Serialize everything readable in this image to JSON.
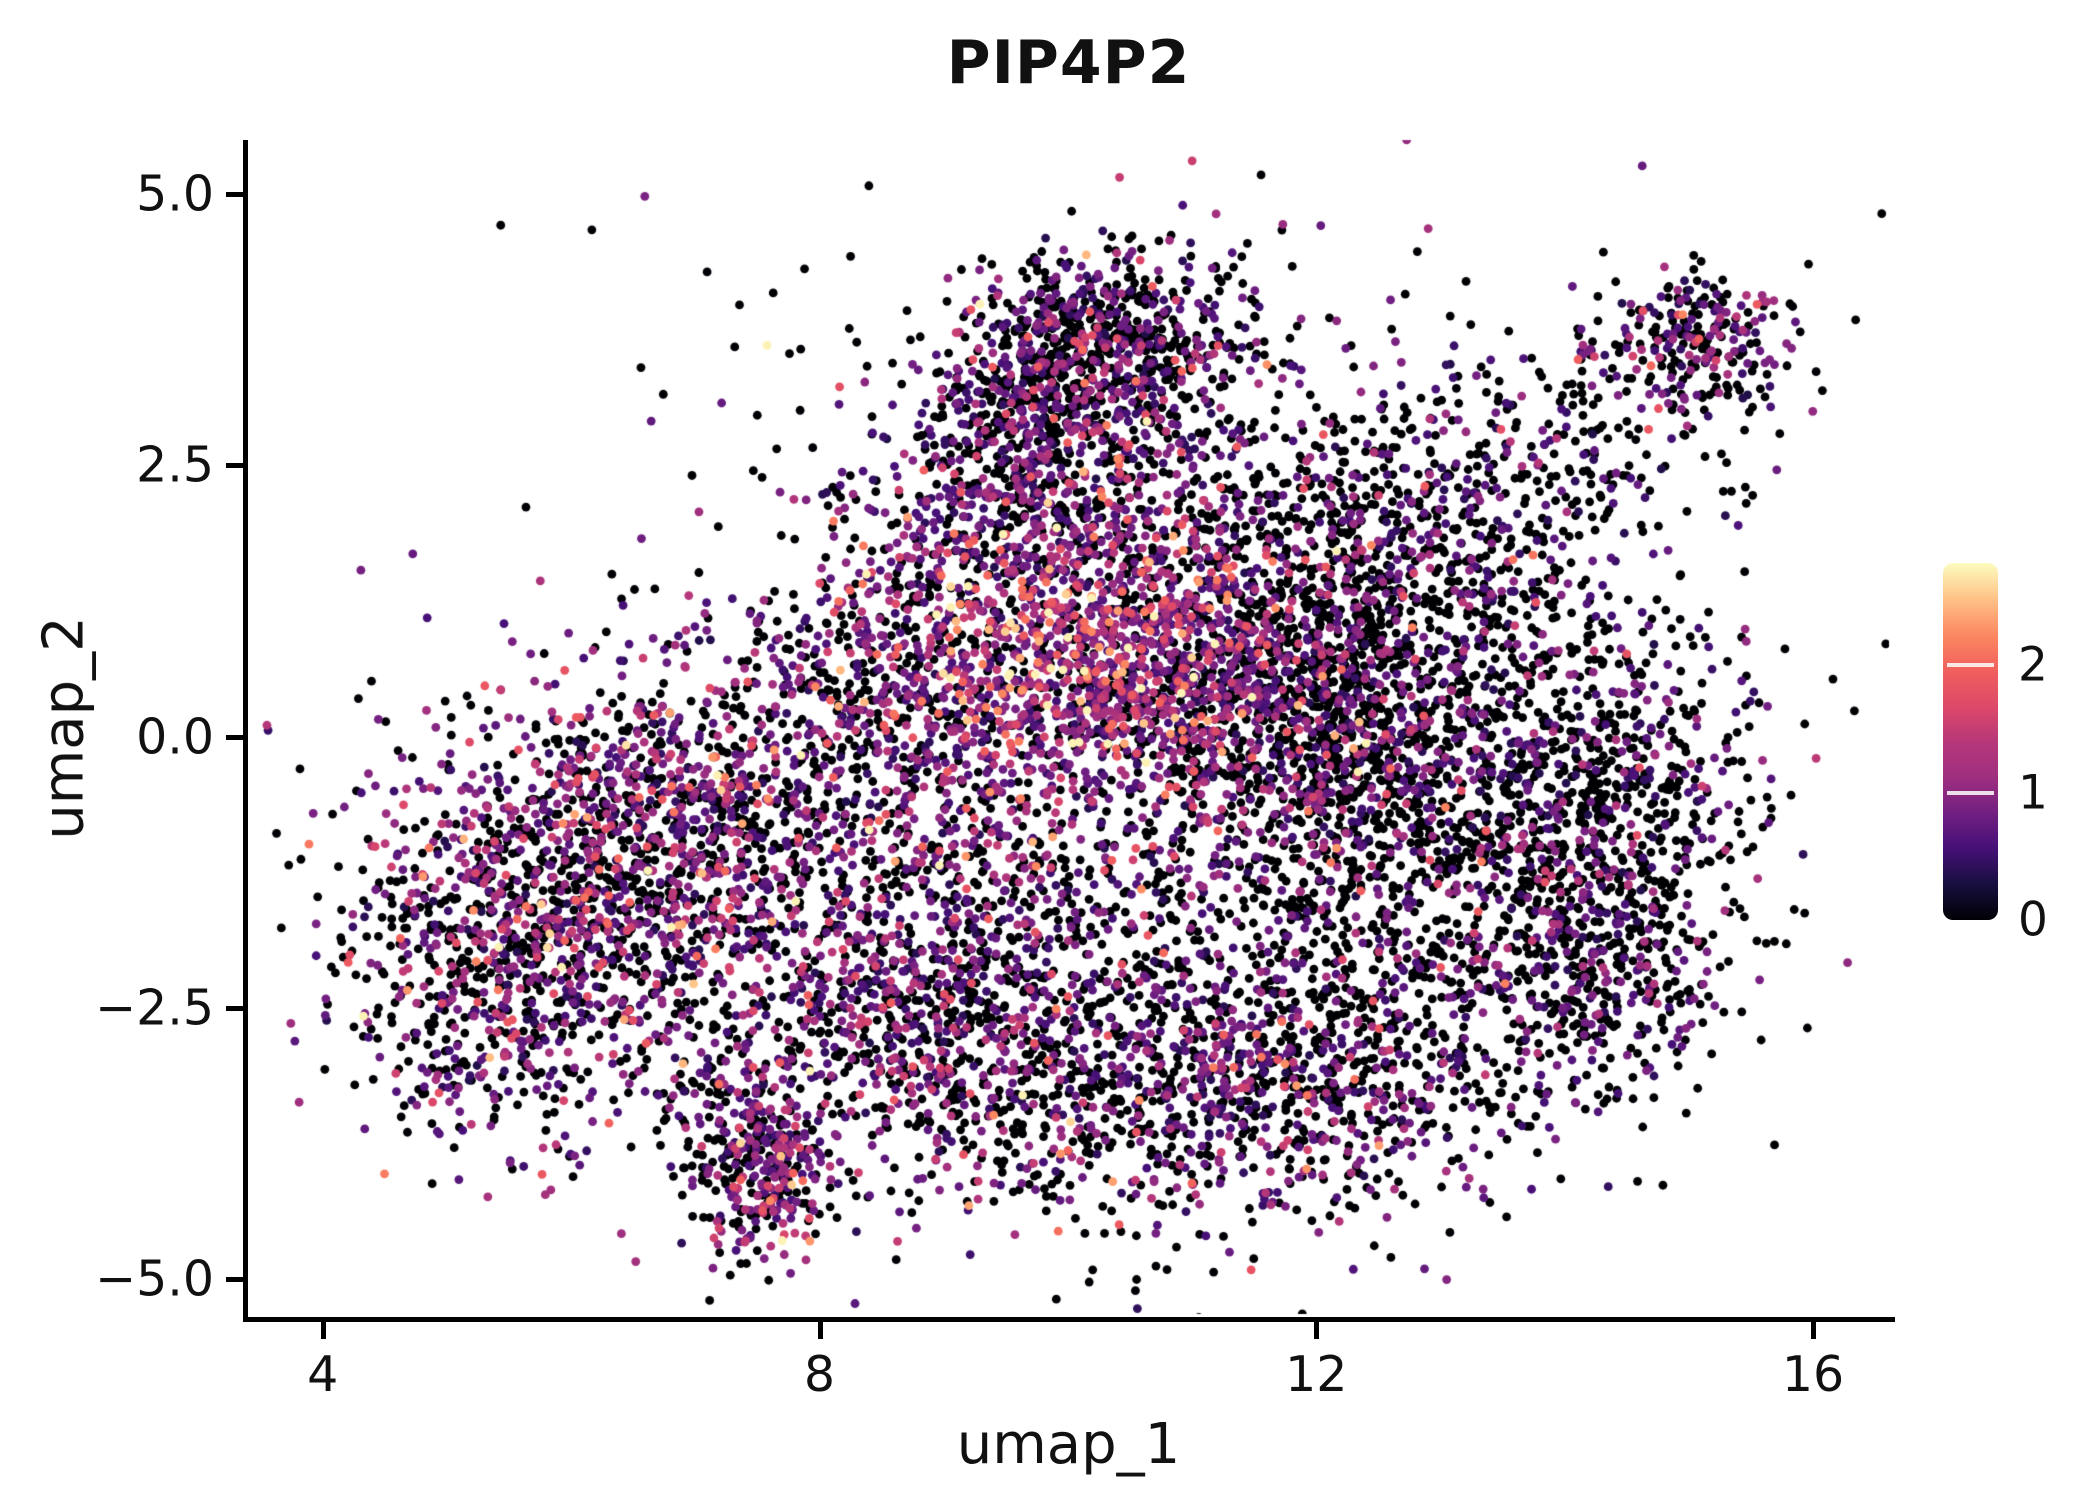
{
  "chart_data": {
    "type": "scatter",
    "title": "PIP4P2",
    "xlabel": "umap_1",
    "ylabel": "umap_2",
    "background_color": "#ffffff",
    "axis_color": "#000000",
    "grid": false,
    "xlim": [
      3.39,
      16.62
    ],
    "ylim": [
      -5.35,
      5.5
    ],
    "x_ticks": [
      {
        "value": 4,
        "label": "4"
      },
      {
        "value": 8,
        "label": "8"
      },
      {
        "value": 12,
        "label": "12"
      },
      {
        "value": 16,
        "label": "16"
      }
    ],
    "y_ticks": [
      {
        "value": 5.0,
        "label": "5.0"
      },
      {
        "value": 2.5,
        "label": "2.5"
      },
      {
        "value": 0.0,
        "label": "0.0"
      },
      {
        "value": -2.5,
        "label": "−2.5"
      },
      {
        "value": -5.0,
        "label": "−5.0"
      }
    ],
    "colorbar": {
      "position": "right",
      "domain": [
        0,
        2.8
      ],
      "ticks": [
        {
          "value": 0,
          "label": "0"
        },
        {
          "value": 1,
          "label": "1"
        },
        {
          "value": 2,
          "label": "2"
        }
      ]
    },
    "colormap": {
      "name": "magma",
      "stops": [
        {
          "t": 0.0,
          "color": "#000004"
        },
        {
          "t": 0.1,
          "color": "#180f3e"
        },
        {
          "t": 0.2,
          "color": "#451077"
        },
        {
          "t": 0.3,
          "color": "#721f81"
        },
        {
          "t": 0.4,
          "color": "#9f2f7f"
        },
        {
          "t": 0.5,
          "color": "#b73779"
        },
        {
          "t": 0.6,
          "color": "#de4968"
        },
        {
          "t": 0.7,
          "color": "#f1605d"
        },
        {
          "t": 0.8,
          "color": "#fc8961"
        },
        {
          "t": 0.9,
          "color": "#fec287"
        },
        {
          "t": 1.0,
          "color": "#fcfdbf"
        }
      ]
    },
    "point_radius": 4.4,
    "seed": 42,
    "points_encoding": "gaussian_clusters",
    "clusters": [
      {
        "x": 10.3,
        "y": 3.6,
        "sx": 0.55,
        "sy": 0.45,
        "n": 650,
        "p0": 0.55,
        "m": 0.8
      },
      {
        "x": 9.6,
        "y": 3.0,
        "sx": 0.5,
        "sy": 0.5,
        "n": 300,
        "p0": 0.5,
        "m": 0.9
      },
      {
        "x": 9.9,
        "y": 2.2,
        "sx": 0.8,
        "sy": 0.5,
        "n": 450,
        "p0": 0.5,
        "m": 0.9
      },
      {
        "x": 15.05,
        "y": 3.65,
        "sx": 0.38,
        "sy": 0.33,
        "n": 230,
        "p0": 0.5,
        "m": 1.0
      },
      {
        "x": 14.7,
        "y": 3.4,
        "sx": 0.6,
        "sy": 0.45,
        "n": 60,
        "p0": 0.6,
        "m": 0.8
      },
      {
        "x": 9.9,
        "y": 0.9,
        "sx": 0.85,
        "sy": 0.75,
        "n": 1100,
        "p0": 0.22,
        "m": 1.4
      },
      {
        "x": 10.9,
        "y": 0.4,
        "sx": 0.6,
        "sy": 0.7,
        "n": 450,
        "p0": 0.35,
        "m": 1.2
      },
      {
        "x": 8.4,
        "y": 0.3,
        "sx": 0.85,
        "sy": 0.8,
        "n": 550,
        "p0": 0.45,
        "m": 1.0
      },
      {
        "x": 6.3,
        "y": -1.5,
        "sx": 0.95,
        "sy": 0.95,
        "n": 1250,
        "p0": 0.42,
        "m": 1.1
      },
      {
        "x": 5.3,
        "y": -2.2,
        "sx": 0.55,
        "sy": 0.75,
        "n": 450,
        "p0": 0.55,
        "m": 0.9
      },
      {
        "x": 6.8,
        "y": -0.4,
        "sx": 0.7,
        "sy": 0.5,
        "n": 300,
        "p0": 0.45,
        "m": 1.0
      },
      {
        "x": 7.55,
        "y": -4.05,
        "sx": 0.28,
        "sy": 0.4,
        "n": 260,
        "p0": 0.32,
        "m": 1.1
      },
      {
        "x": 7.3,
        "y": -3.4,
        "sx": 0.35,
        "sy": 0.4,
        "n": 120,
        "p0": 0.5,
        "m": 0.9
      },
      {
        "x": 12.7,
        "y": -0.6,
        "sx": 1.1,
        "sy": 1.3,
        "n": 1700,
        "p0": 0.72,
        "m": 0.75
      },
      {
        "x": 12.4,
        "y": 1.7,
        "sx": 0.85,
        "sy": 0.75,
        "n": 700,
        "p0": 0.62,
        "m": 0.8
      },
      {
        "x": 14.4,
        "y": -0.9,
        "sx": 0.6,
        "sy": 1.0,
        "n": 550,
        "p0": 0.7,
        "m": 0.7
      },
      {
        "x": 12.0,
        "y": 0.2,
        "sx": 0.7,
        "sy": 0.7,
        "n": 500,
        "p0": 0.6,
        "m": 0.9
      },
      {
        "x": 10.4,
        "y": -3.1,
        "sx": 1.1,
        "sy": 0.75,
        "n": 850,
        "p0": 0.52,
        "m": 0.9
      },
      {
        "x": 12.2,
        "y": -3.2,
        "sx": 0.8,
        "sy": 0.6,
        "n": 500,
        "p0": 0.6,
        "m": 0.85
      },
      {
        "x": 9.2,
        "y": -1.6,
        "sx": 0.95,
        "sy": 0.85,
        "n": 650,
        "p0": 0.5,
        "m": 0.9
      },
      {
        "x": 10.8,
        "y": 2.9,
        "sx": 1.5,
        "sy": 0.9,
        "n": 180,
        "p0": 0.65,
        "m": 0.8
      },
      {
        "x": 14.3,
        "y": -2.2,
        "sx": 0.5,
        "sy": 0.55,
        "n": 220,
        "p0": 0.62,
        "m": 0.8
      },
      {
        "x": 13.8,
        "y": 2.6,
        "sx": 0.8,
        "sy": 0.5,
        "n": 150,
        "p0": 0.7,
        "m": 0.7
      },
      {
        "x": 8.6,
        "y": -2.6,
        "sx": 0.7,
        "sy": 0.7,
        "n": 350,
        "p0": 0.5,
        "m": 0.9
      },
      {
        "x": 10.5,
        "y": 0.0,
        "sx": 3.0,
        "sy": 2.2,
        "n": 250,
        "p0": 0.6,
        "m": 0.8
      }
    ]
  }
}
